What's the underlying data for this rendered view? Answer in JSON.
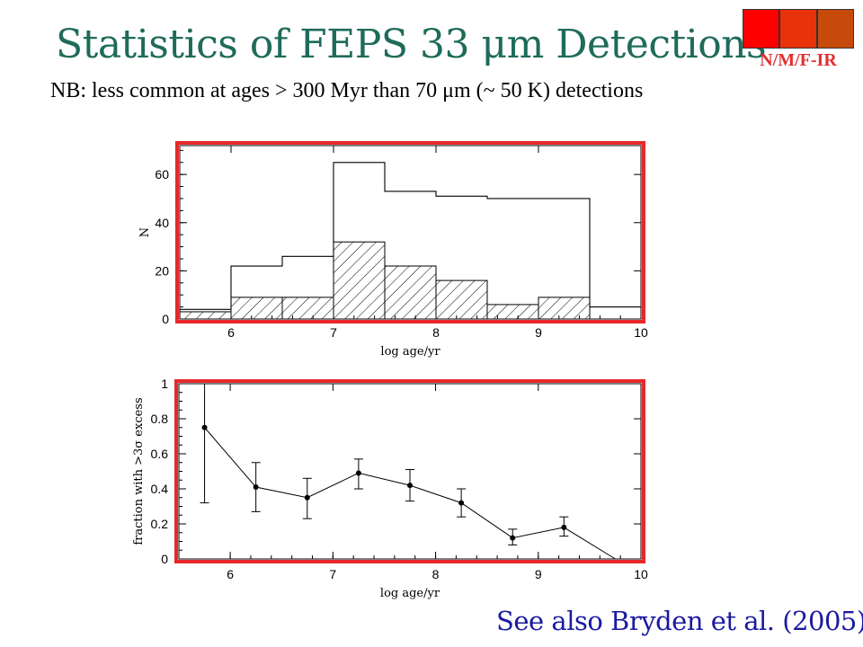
{
  "slide": {
    "title": "Statistics of FEPS 33 μm Detections",
    "subtitle": "NB:  less common at ages > 300 Myr than 70 μm (~ 50 K) detections",
    "badge_label": "N/M/F-IR",
    "badge_colors": [
      "#ff0000",
      "#e8320a",
      "#c84a0a"
    ],
    "footer": "See also Bryden et al. (2005)",
    "colors": {
      "title": "#1f6b5a",
      "highlight_frame": "#e8282a",
      "badge_text": "#e03030",
      "footer": "#1a1aa0"
    }
  },
  "chart_data": [
    {
      "type": "histogram",
      "xlabel": "log age/yr",
      "ylabel": "N",
      "xlim": [
        5.5,
        10
      ],
      "ylim": [
        0,
        72
      ],
      "xticks": [
        6,
        7,
        8,
        9,
        10
      ],
      "yticks": [
        0,
        20,
        40,
        60
      ],
      "bins": [
        5.5,
        6.0,
        6.5,
        7.0,
        7.5,
        8.0,
        8.5,
        9.0,
        9.5,
        10.0
      ],
      "series": [
        {
          "style": "open",
          "values": [
            4,
            22,
            26,
            65,
            53,
            51,
            50,
            50,
            5
          ]
        },
        {
          "style": "hatched",
          "values": [
            3,
            9,
            9,
            32,
            22,
            16,
            6,
            9,
            0
          ]
        }
      ]
    },
    {
      "type": "scatter",
      "xlabel": "log age/yr",
      "ylabel": "fraction with >3σ excess",
      "xlim": [
        5.5,
        10
      ],
      "ylim": [
        0,
        1
      ],
      "xticks": [
        6,
        7,
        8,
        9,
        10
      ],
      "ytick_labels": [
        "0",
        "0.2",
        "0.4",
        "0.6",
        "0.8",
        "1"
      ],
      "x": [
        5.75,
        6.25,
        6.75,
        7.25,
        7.75,
        8.25,
        8.75,
        9.25,
        9.75
      ],
      "y": [
        0.75,
        0.41,
        0.35,
        0.49,
        0.42,
        0.32,
        0.12,
        0.18,
        0.0
      ],
      "err_low": [
        0.43,
        0.14,
        0.12,
        0.09,
        0.09,
        0.08,
        0.04,
        0.05,
        0
      ],
      "err_high": [
        0.25,
        0.14,
        0.11,
        0.08,
        0.09,
        0.08,
        0.05,
        0.06,
        0
      ],
      "markers": [
        true,
        true,
        true,
        true,
        true,
        true,
        true,
        true,
        false
      ],
      "connected": true
    }
  ]
}
